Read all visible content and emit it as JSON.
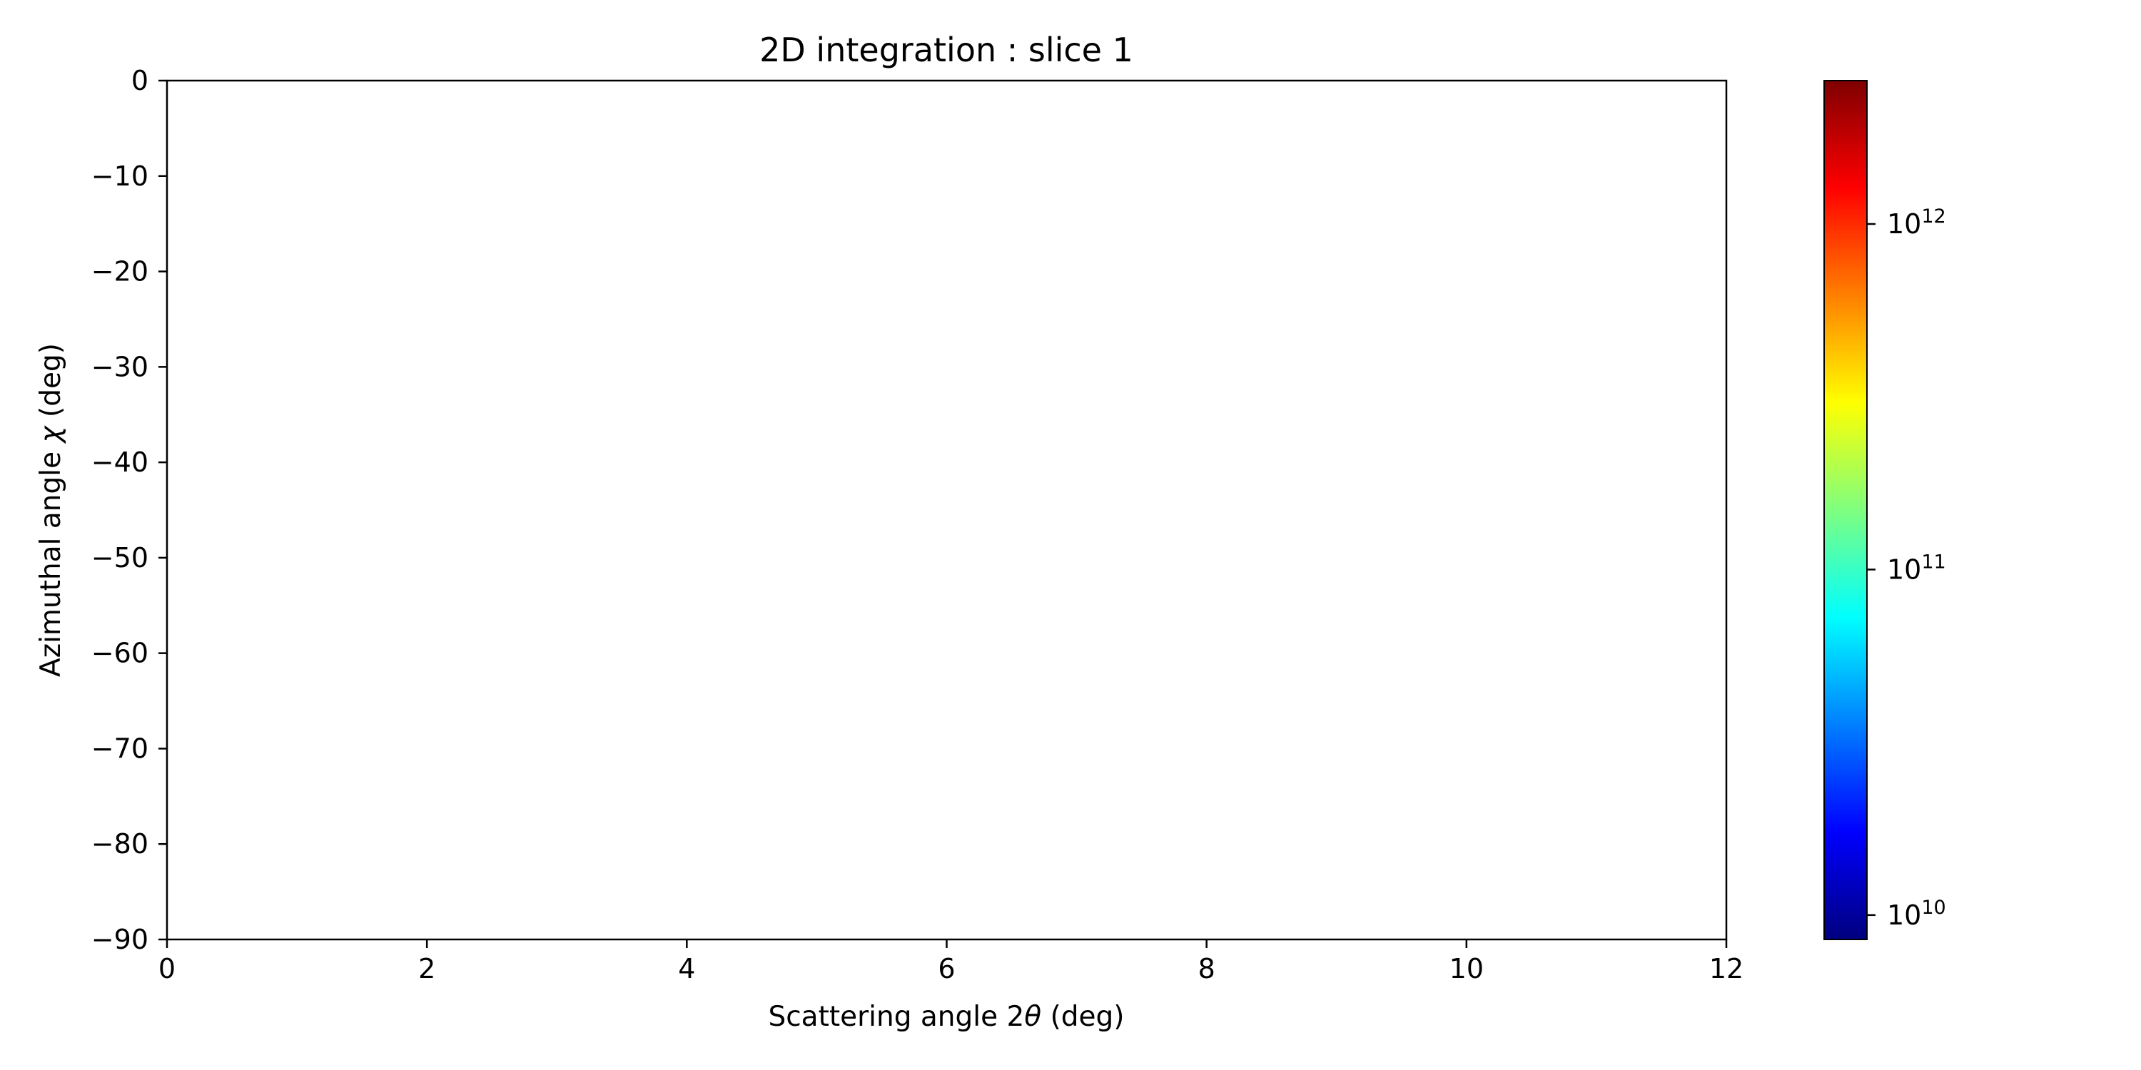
{
  "chart_data": {
    "type": "heatmap",
    "title": "2D integration : slice 1",
    "xlabel_main": "Scattering angle 2",
    "xlabel_symbol": "θ",
    "xlabel_unit": " (deg)",
    "ylabel_main": "Azimuthal angle ",
    "ylabel_symbol": "χ",
    "ylabel_unit": " (deg)",
    "xlim": [
      0,
      12
    ],
    "ylim": [
      -90,
      0
    ],
    "xticks": [
      0,
      2,
      4,
      6,
      8,
      10,
      12
    ],
    "yticks": [
      0,
      -10,
      -20,
      -30,
      -40,
      -50,
      -60,
      -70,
      -80,
      -90
    ],
    "data_visible": false,
    "colorbar": {
      "colormap": "jet",
      "scale": "log",
      "range": [
        8500000000.0,
        2600000000000.0
      ],
      "ticks": [
        {
          "value": 10000000000.0,
          "base": "10",
          "exp": "10"
        },
        {
          "value": 100000000000.0,
          "base": "10",
          "exp": "11"
        },
        {
          "value": 1000000000000.0,
          "base": "10",
          "exp": "12"
        }
      ],
      "colors": [
        "#00007f",
        "#0000ff",
        "#007fff",
        "#00ffff",
        "#7fff7f",
        "#ffff00",
        "#ff7f00",
        "#ff0000",
        "#7f0000"
      ]
    }
  }
}
